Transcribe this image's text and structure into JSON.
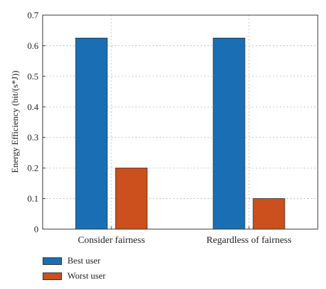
{
  "chart_data": {
    "type": "bar",
    "categories": [
      "Consider fairness",
      "Regardless of fairness"
    ],
    "series": [
      {
        "name": "Best user",
        "values": [
          0.625,
          0.625
        ],
        "color": "#1a6fb4"
      },
      {
        "name": "Worst user",
        "values": [
          0.2,
          0.1
        ],
        "color": "#cc4f1e"
      }
    ],
    "ylabel": "Energy Efficiency (bit/(s*J))",
    "xlabel": "",
    "ylim": [
      0,
      0.7
    ],
    "yticks": [
      "0",
      "0.1",
      "0.2",
      "0.3",
      "0.4",
      "0.5",
      "0.6",
      "0.7"
    ],
    "grid": true,
    "legend_position": "bottom-left"
  }
}
